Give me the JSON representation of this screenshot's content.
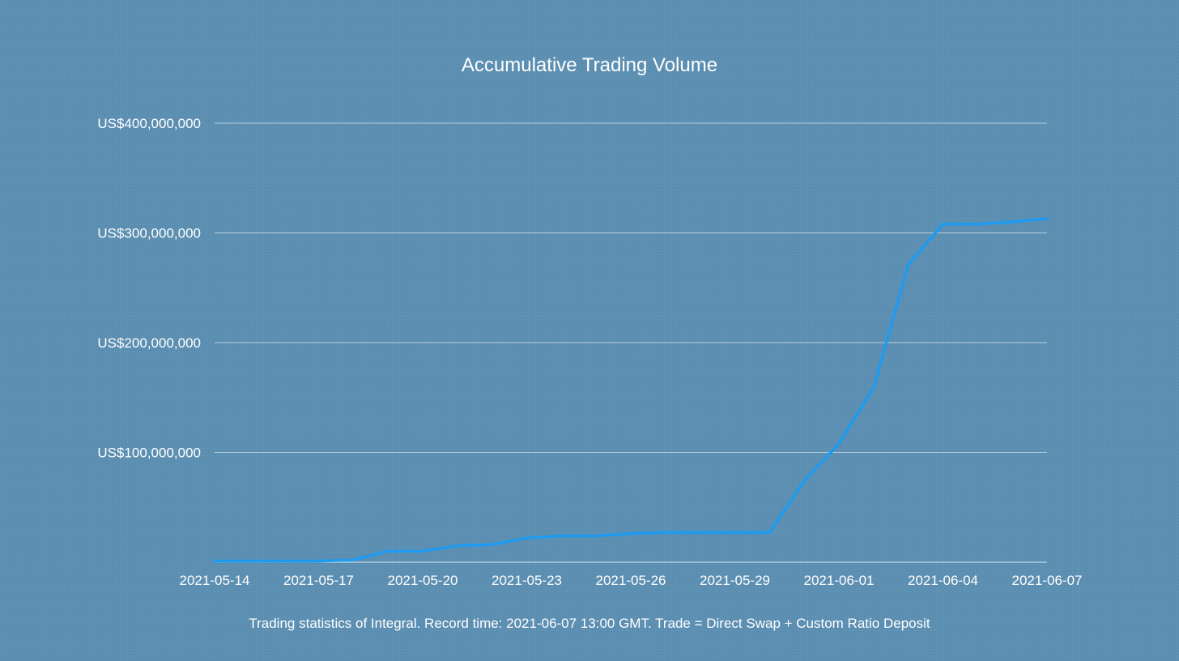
{
  "chart_data": {
    "type": "line",
    "title": "Accumulative Trading Volume",
    "caption": "Trading statistics of Integral. Record time: 2021-06-07 13:00 GMT. Trade = Direct Swap + Custom Ratio Deposit",
    "xlabel": "",
    "ylabel": "",
    "x_tick_labels": [
      "2021-05-14",
      "2021-05-17",
      "2021-05-20",
      "2021-05-23",
      "2021-05-26",
      "2021-05-29",
      "2021-06-01",
      "2021-06-04",
      "2021-06-07"
    ],
    "y_ticks": [
      100000000,
      200000000,
      300000000,
      400000000
    ],
    "y_tick_labels": [
      "US$100,000,000",
      "US$200,000,000",
      "US$300,000,000",
      "US$400,000,000"
    ],
    "ylim": [
      0,
      400000000
    ],
    "grid": true,
    "legend": "none",
    "series": [
      {
        "color": "#1e9bf0",
        "points": [
          {
            "x": "2021-05-14",
            "y": 1000000
          },
          {
            "x": "2021-05-15",
            "y": 1000000
          },
          {
            "x": "2021-05-16",
            "y": 1000000
          },
          {
            "x": "2021-05-17",
            "y": 1000000
          },
          {
            "x": "2021-05-18",
            "y": 2000000
          },
          {
            "x": "2021-05-19",
            "y": 10000000
          },
          {
            "x": "2021-05-20",
            "y": 10000000
          },
          {
            "x": "2021-05-21",
            "y": 15000000
          },
          {
            "x": "2021-05-22",
            "y": 16000000
          },
          {
            "x": "2021-05-23",
            "y": 22000000
          },
          {
            "x": "2021-05-24",
            "y": 24000000
          },
          {
            "x": "2021-05-25",
            "y": 24000000
          },
          {
            "x": "2021-05-26",
            "y": 26000000
          },
          {
            "x": "2021-05-27",
            "y": 27000000
          },
          {
            "x": "2021-05-28",
            "y": 27000000
          },
          {
            "x": "2021-05-29",
            "y": 27000000
          },
          {
            "x": "2021-05-30",
            "y": 27000000
          },
          {
            "x": "2021-05-31",
            "y": 74000000
          },
          {
            "x": "2021-06-01",
            "y": 108000000
          },
          {
            "x": "2021-06-02",
            "y": 159000000
          },
          {
            "x": "2021-06-03",
            "y": 271000000
          },
          {
            "x": "2021-06-04",
            "y": 308000000
          },
          {
            "x": "2021-06-05",
            "y": 308000000
          },
          {
            "x": "2021-06-06",
            "y": 310000000
          },
          {
            "x": "2021-06-07",
            "y": 313000000
          }
        ]
      }
    ]
  }
}
